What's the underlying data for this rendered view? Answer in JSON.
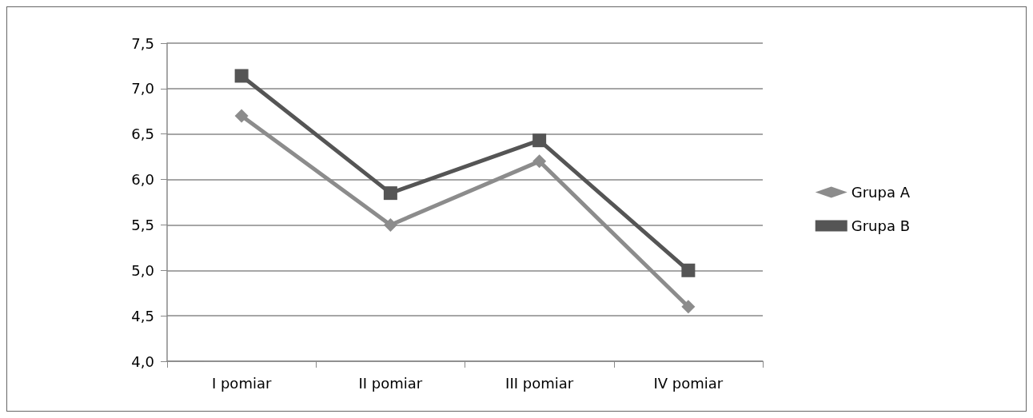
{
  "chart_data": {
    "type": "line",
    "categories": [
      "I pomiar",
      "II pomiar",
      "III pomiar",
      "IV pomiar"
    ],
    "series": [
      {
        "name": "Grupa A",
        "color": "#8c8c8c",
        "marker": "diamond",
        "values": [
          6.7,
          5.5,
          6.2,
          4.6
        ]
      },
      {
        "name": "Grupa B",
        "color": "#555555",
        "marker": "square",
        "values": [
          7.14,
          5.85,
          6.43,
          5.0
        ]
      }
    ],
    "ylim": [
      4.0,
      7.5
    ],
    "yticks": [
      {
        "value": 4.0,
        "label": "4,0"
      },
      {
        "value": 4.5,
        "label": "4,5"
      },
      {
        "value": 5.0,
        "label": "5,0"
      },
      {
        "value": 5.5,
        "label": "5,5"
      },
      {
        "value": 6.0,
        "label": "6,0"
      },
      {
        "value": 6.5,
        "label": "6,5"
      },
      {
        "value": 7.0,
        "label": "7,0"
      },
      {
        "value": 7.5,
        "label": "7,5"
      }
    ],
    "grid": "y",
    "legend": "right",
    "line_style": "solid"
  }
}
